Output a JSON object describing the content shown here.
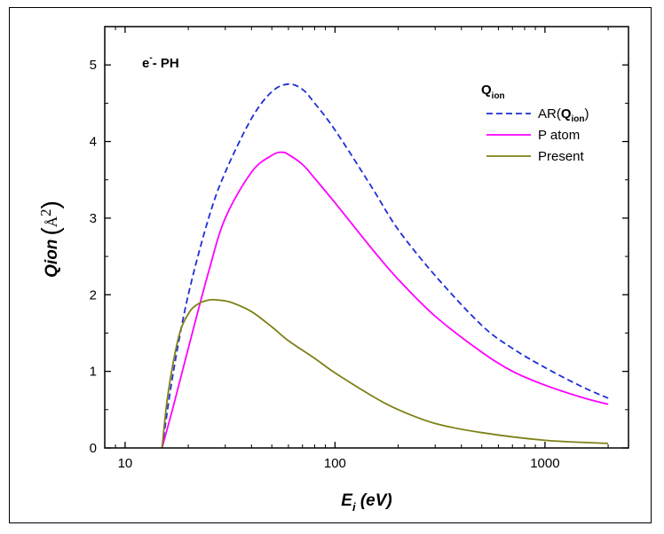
{
  "chart_data": {
    "type": "line",
    "annotation": {
      "main": "e",
      "sup": "-",
      "rest": "- PH"
    },
    "xlabel": {
      "main": "E",
      "sub": "i",
      "rest": " (eV)"
    },
    "ylabel": {
      "main": "Qion",
      "open": "(",
      "unit": "Å",
      "unit_sup": "2",
      "close": ")"
    },
    "x_scale": "log",
    "xlim": [
      8,
      2500
    ],
    "ylim": [
      0,
      5.5
    ],
    "x_ticks": [
      10,
      100,
      1000
    ],
    "x_tick_labels": [
      "10",
      "100",
      "1000"
    ],
    "y_ticks": [
      0,
      1,
      2,
      3,
      4,
      5
    ],
    "y_tick_labels": [
      "0",
      "1",
      "2",
      "3",
      "4",
      "5"
    ],
    "grid": false,
    "legend": {
      "placement": "top-right",
      "title_main": "Q",
      "title_sub": "ion",
      "entries": [
        {
          "label_prefix": "AR(",
          "label_bold": "Q",
          "label_sub": "ion",
          "label_suffix": ")"
        },
        {
          "label_prefix": "P atom",
          "label_bold": "",
          "label_sub": "",
          "label_suffix": ""
        },
        {
          "label_prefix": "Present",
          "label_bold": "",
          "label_sub": "",
          "label_suffix": ""
        }
      ]
    },
    "series": [
      {
        "color": "#1f2fd6",
        "dash": "dashed",
        "x": [
          15,
          17,
          20,
          25,
          30,
          40,
          50,
          60,
          70,
          80,
          100,
          150,
          200,
          300,
          500,
          700,
          1000,
          1500,
          2000
        ],
        "y": [
          0.0,
          1.0,
          2.0,
          3.0,
          3.6,
          4.3,
          4.65,
          4.75,
          4.68,
          4.5,
          4.15,
          3.4,
          2.85,
          2.25,
          1.6,
          1.3,
          1.05,
          0.8,
          0.65
        ]
      },
      {
        "color": "#ff00ff",
        "dash": "solid",
        "x": [
          15,
          17,
          20,
          25,
          30,
          40,
          50,
          56,
          60,
          70,
          80,
          100,
          150,
          200,
          300,
          500,
          700,
          1000,
          1500,
          2000
        ],
        "y": [
          0.0,
          0.55,
          1.3,
          2.3,
          3.0,
          3.6,
          3.82,
          3.86,
          3.83,
          3.7,
          3.52,
          3.2,
          2.6,
          2.2,
          1.72,
          1.25,
          1.0,
          0.82,
          0.66,
          0.57
        ]
      },
      {
        "color": "#808018",
        "dash": "solid",
        "x": [
          15,
          16,
          18,
          20,
          22,
          25,
          28,
          32,
          40,
          50,
          60,
          80,
          100,
          150,
          200,
          300,
          500,
          1000,
          2000
        ],
        "y": [
          0.0,
          0.7,
          1.45,
          1.75,
          1.87,
          1.93,
          1.93,
          1.9,
          1.78,
          1.58,
          1.4,
          1.17,
          0.98,
          0.68,
          0.5,
          0.32,
          0.2,
          0.1,
          0.06
        ]
      }
    ]
  }
}
